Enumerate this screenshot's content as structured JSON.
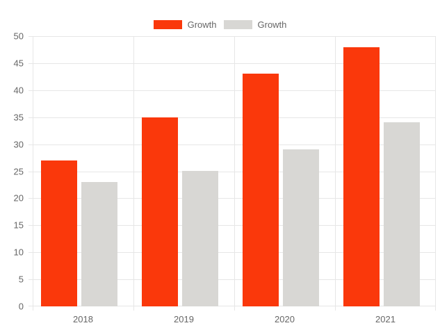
{
  "chart_data": {
    "type": "bar",
    "title": "",
    "categories": [
      "2018",
      "2019",
      "2020",
      "2021"
    ],
    "series": [
      {
        "name": "Growth",
        "color": "#fa380b",
        "values": [
          27,
          35,
          43,
          48
        ]
      },
      {
        "name": "Growth",
        "color": "#d8d7d4",
        "values": [
          23,
          25,
          29,
          34
        ]
      }
    ],
    "ylim": [
      0,
      50
    ],
    "ytick_step": 5,
    "ytick_labels": [
      "0",
      "5",
      "10",
      "15",
      "20",
      "25",
      "30",
      "35",
      "40",
      "45",
      "50"
    ],
    "grid": true,
    "legend_position": "top",
    "grid_color": "#e6e6e6",
    "tick_label_color": "#666666"
  }
}
